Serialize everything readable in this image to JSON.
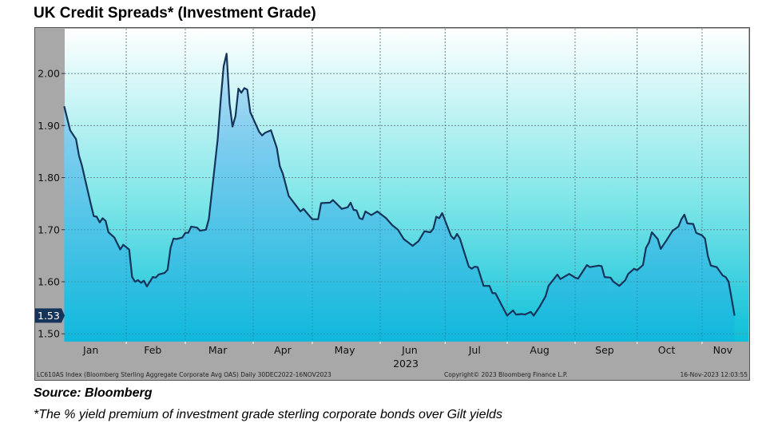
{
  "title": "UK Credit Spreads* (Investment Grade)",
  "source": "Source: Bloomberg",
  "footnote": "*The % yield premium of investment grade sterling corporate bonds over Gilt yields",
  "chart_data": {
    "type": "area",
    "title": "UK Credit Spreads* (Investment Grade)",
    "xlabel": "2023",
    "ylabel": "",
    "ylim": [
      1.485,
      2.086
    ],
    "yticks": [
      "1.50",
      "1.60",
      "1.70",
      "1.80",
      "1.90",
      "2.00"
    ],
    "ytick_values": [
      1.5,
      1.6,
      1.7,
      1.8,
      1.9,
      2.0
    ],
    "xtick_labels": [
      "Jan",
      "Feb",
      "Mar",
      "Apr",
      "May",
      "Jun",
      "Jul",
      "Aug",
      "Sep",
      "Oct",
      "Nov"
    ],
    "year_label": "2023",
    "grid": true,
    "last_value_label": "1.53",
    "footer_left": "LC610AS Index (Bloomberg Sterling Aggregate Corporate Avg OAS)  Daily 30DEC2022-16NOV2023",
    "footer_center": "Copyright© 2023 Bloomberg Finance L.P.",
    "footer_right": "16-Nov-2023 12:03:55",
    "colors": {
      "line": "#15345a",
      "area_top": "#9dd6f2",
      "area_bottom": "#12b8dc",
      "bg_top": "#ffffff",
      "bg_mid": "#8ae8ea",
      "bg_bottom": "#0fc0d8",
      "axis_band": "#a8a8a8",
      "last_label": "#15345a"
    },
    "points": [
      [
        "2023-01-03",
        1.937
      ],
      [
        "2023-01-05",
        1.891
      ],
      [
        "2023-01-09",
        1.874
      ],
      [
        "2023-01-10",
        1.842
      ],
      [
        "2023-01-11",
        1.823
      ],
      [
        "2023-01-16",
        1.749
      ],
      [
        "2023-01-17",
        1.726
      ],
      [
        "2023-01-18",
        1.725
      ],
      [
        "2023-01-19",
        1.714
      ],
      [
        "2023-01-20",
        1.722
      ],
      [
        "2023-01-23",
        1.717
      ],
      [
        "2023-01-24",
        1.695
      ],
      [
        "2023-01-26",
        1.685
      ],
      [
        "2023-01-30",
        1.662
      ],
      [
        "2023-01-31",
        1.671
      ],
      [
        "2023-02-02",
        1.662
      ],
      [
        "2023-02-03",
        1.609
      ],
      [
        "2023-02-06",
        1.6
      ],
      [
        "2023-02-07",
        1.603
      ],
      [
        "2023-02-08",
        1.598
      ],
      [
        "2023-02-09",
        1.602
      ],
      [
        "2023-02-10",
        1.591
      ],
      [
        "2023-02-14",
        1.609
      ],
      [
        "2023-02-15",
        1.608
      ],
      [
        "2023-02-16",
        1.614
      ],
      [
        "2023-02-20",
        1.617
      ],
      [
        "2023-02-21",
        1.623
      ],
      [
        "2023-02-22",
        1.665
      ],
      [
        "2023-02-23",
        1.683
      ],
      [
        "2023-02-24",
        1.682
      ],
      [
        "2023-02-28",
        1.685
      ],
      [
        "2023-03-01",
        1.694
      ],
      [
        "2023-03-02",
        1.694
      ],
      [
        "2023-03-03",
        1.706
      ],
      [
        "2023-03-07",
        1.704
      ],
      [
        "2023-03-08",
        1.698
      ],
      [
        "2023-03-10",
        1.7
      ],
      [
        "2023-03-13",
        1.721
      ],
      [
        "2023-03-15",
        1.823
      ],
      [
        "2023-03-16",
        1.875
      ],
      [
        "2023-03-17",
        1.949
      ],
      [
        "2023-03-20",
        2.014
      ],
      [
        "2023-03-21",
        2.038
      ],
      [
        "2023-03-22",
        1.942
      ],
      [
        "2023-03-23",
        1.898
      ],
      [
        "2023-03-24",
        1.918
      ],
      [
        "2023-03-27",
        1.971
      ],
      [
        "2023-03-28",
        1.963
      ],
      [
        "2023-03-29",
        1.972
      ],
      [
        "2023-03-30",
        1.969
      ],
      [
        "2023-03-31",
        1.926
      ],
      [
        "2023-04-05",
        1.888
      ],
      [
        "2023-04-06",
        1.881
      ],
      [
        "2023-04-07",
        1.886
      ],
      [
        "2023-04-11",
        1.891
      ],
      [
        "2023-04-13",
        1.857
      ],
      [
        "2023-04-14",
        1.822
      ],
      [
        "2023-04-17",
        1.808
      ],
      [
        "2023-04-19",
        1.765
      ],
      [
        "2023-04-25",
        1.735
      ],
      [
        "2023-04-26",
        1.74
      ],
      [
        "2023-05-01",
        1.72
      ],
      [
        "2023-05-03",
        1.72
      ],
      [
        "2023-05-04",
        1.751
      ],
      [
        "2023-05-09",
        1.752
      ],
      [
        "2023-05-10",
        1.757
      ],
      [
        "2023-05-15",
        1.74
      ],
      [
        "2023-05-17",
        1.743
      ],
      [
        "2023-05-18",
        1.752
      ],
      [
        "2023-05-19",
        1.738
      ],
      [
        "2023-05-22",
        1.737
      ],
      [
        "2023-05-23",
        1.722
      ],
      [
        "2023-05-24",
        1.72
      ],
      [
        "2023-05-25",
        1.735
      ],
      [
        "2023-05-29",
        1.728
      ],
      [
        "2023-05-31",
        1.735
      ],
      [
        "2023-06-05",
        1.722
      ],
      [
        "2023-06-07",
        1.709
      ],
      [
        "2023-06-09",
        1.7
      ],
      [
        "2023-06-13",
        1.682
      ],
      [
        "2023-06-16",
        1.669
      ],
      [
        "2023-06-20",
        1.678
      ],
      [
        "2023-06-22",
        1.697
      ],
      [
        "2023-06-26",
        1.695
      ],
      [
        "2023-06-27",
        1.702
      ],
      [
        "2023-06-28",
        1.725
      ],
      [
        "2023-06-29",
        1.722
      ],
      [
        "2023-06-30",
        1.732
      ],
      [
        "2023-07-05",
        1.688
      ],
      [
        "2023-07-06",
        1.682
      ],
      [
        "2023-07-07",
        1.692
      ],
      [
        "2023-07-10",
        1.683
      ],
      [
        "2023-07-13",
        1.629
      ],
      [
        "2023-07-14",
        1.625
      ],
      [
        "2023-07-17",
        1.629
      ],
      [
        "2023-07-18",
        1.628
      ],
      [
        "2023-07-20",
        1.592
      ],
      [
        "2023-07-24",
        1.592
      ],
      [
        "2023-07-25",
        1.578
      ],
      [
        "2023-07-26",
        1.578
      ],
      [
        "2023-08-01",
        1.535
      ],
      [
        "2023-08-03",
        1.545
      ],
      [
        "2023-08-04",
        1.537
      ],
      [
        "2023-08-08",
        1.538
      ],
      [
        "2023-08-09",
        1.537
      ],
      [
        "2023-08-11",
        1.542
      ],
      [
        "2023-08-14",
        1.535
      ],
      [
        "2023-08-16",
        1.552
      ],
      [
        "2023-08-18",
        1.572
      ],
      [
        "2023-08-21",
        1.592
      ],
      [
        "2023-08-24",
        1.614
      ],
      [
        "2023-08-25",
        1.605
      ],
      [
        "2023-08-30",
        1.615
      ],
      [
        "2023-09-01",
        1.608
      ],
      [
        "2023-09-04",
        1.606
      ],
      [
        "2023-09-07",
        1.632
      ],
      [
        "2023-09-08",
        1.628
      ],
      [
        "2023-09-13",
        1.631
      ],
      [
        "2023-09-14",
        1.63
      ],
      [
        "2023-09-15",
        1.609
      ],
      [
        "2023-09-19",
        1.608
      ],
      [
        "2023-09-20",
        1.6
      ],
      [
        "2023-09-22",
        1.592
      ],
      [
        "2023-09-26",
        1.603
      ],
      [
        "2023-09-27",
        1.615
      ],
      [
        "2023-09-29",
        1.625
      ],
      [
        "2023-10-02",
        1.622
      ],
      [
        "2023-10-04",
        1.632
      ],
      [
        "2023-10-05",
        1.665
      ],
      [
        "2023-10-06",
        1.675
      ],
      [
        "2023-10-09",
        1.695
      ],
      [
        "2023-10-11",
        1.682
      ],
      [
        "2023-10-12",
        1.663
      ],
      [
        "2023-10-16",
        1.68
      ],
      [
        "2023-10-18",
        1.698
      ],
      [
        "2023-10-20",
        1.706
      ],
      [
        "2023-10-23",
        1.72
      ],
      [
        "2023-10-24",
        1.729
      ],
      [
        "2023-10-25",
        1.712
      ],
      [
        "2023-10-27",
        1.711
      ],
      [
        "2023-10-30",
        1.694
      ],
      [
        "2023-11-01",
        1.689
      ],
      [
        "2023-11-02",
        1.683
      ],
      [
        "2023-11-03",
        1.649
      ],
      [
        "2023-11-06",
        1.631
      ],
      [
        "2023-11-08",
        1.628
      ],
      [
        "2023-11-10",
        1.612
      ],
      [
        "2023-11-13",
        1.609
      ],
      [
        "2023-11-14",
        1.6
      ],
      [
        "2023-11-15",
        1.568
      ],
      [
        "2023-11-16",
        1.535
      ]
    ]
  }
}
